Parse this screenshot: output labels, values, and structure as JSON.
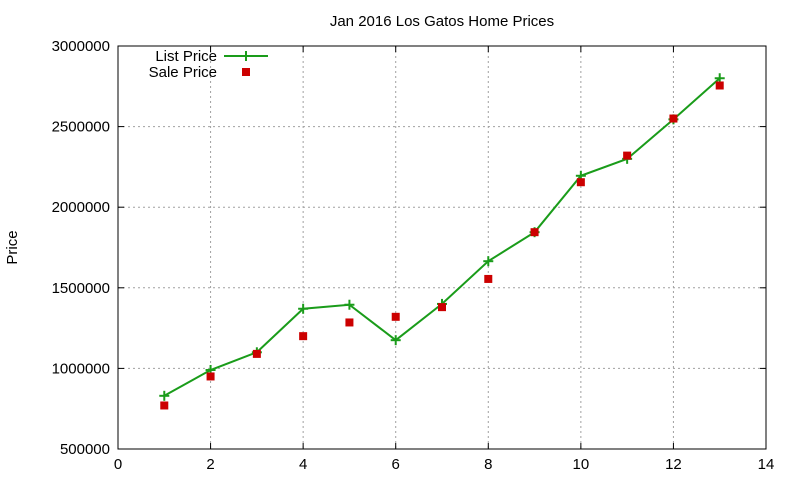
{
  "chart_data": {
    "type": "line",
    "title": "Jan 2016 Los Gatos Home Prices",
    "xlabel": "",
    "ylabel": "Price",
    "xlim": [
      0,
      14
    ],
    "ylim": [
      500000,
      3000000
    ],
    "x_ticks": [
      0,
      2,
      4,
      6,
      8,
      10,
      12,
      14
    ],
    "y_ticks": [
      500000,
      1000000,
      1500000,
      2000000,
      2500000,
      3000000
    ],
    "grid": true,
    "legend_position": "top-left",
    "series": [
      {
        "name": "List Price",
        "style": "line-with-plus-markers",
        "color": "#1a9c1a",
        "x": [
          1,
          2,
          3,
          4,
          5,
          6,
          7,
          8,
          9,
          10,
          11,
          12,
          13
        ],
        "y": [
          830000,
          990000,
          1100000,
          1370000,
          1395000,
          1175000,
          1400000,
          1665000,
          1845000,
          2195000,
          2300000,
          2545000,
          2800000
        ]
      },
      {
        "name": "Sale Price",
        "style": "square-markers",
        "color": "#cc0000",
        "x": [
          1,
          2,
          3,
          4,
          5,
          6,
          7,
          8,
          9,
          10,
          11,
          12,
          13
        ],
        "y": [
          770000,
          950000,
          1090000,
          1200000,
          1285000,
          1320000,
          1380000,
          1555000,
          1845000,
          2155000,
          2320000,
          2550000,
          2755000
        ]
      }
    ]
  }
}
